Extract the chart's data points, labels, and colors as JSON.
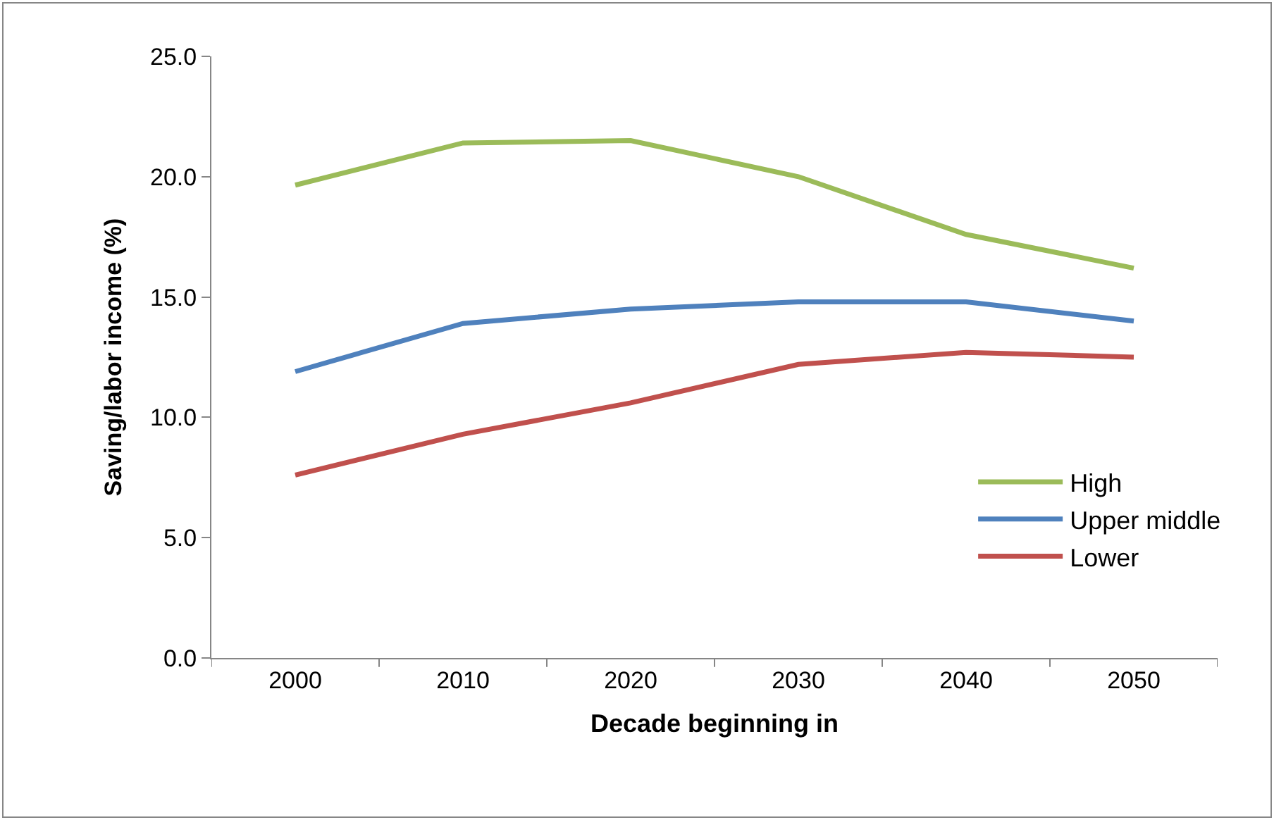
{
  "chart_data": {
    "type": "line",
    "xlabel": "Decade beginning in",
    "ylabel": "Saving/labor income (%)",
    "categories": [
      "2000",
      "2010",
      "2020",
      "2030",
      "2040",
      "2050"
    ],
    "series": [
      {
        "name": "High",
        "color": "#9bbb59",
        "values": [
          19.65,
          21.4,
          21.5,
          20.0,
          17.6,
          16.2
        ]
      },
      {
        "name": "Upper middle",
        "color": "#4f81bd",
        "values": [
          11.9,
          13.9,
          14.5,
          14.8,
          14.8,
          14.0
        ]
      },
      {
        "name": "Lower",
        "color": "#c0504d",
        "values": [
          7.6,
          9.3,
          10.6,
          12.2,
          12.7,
          12.5
        ]
      }
    ],
    "ylim": [
      0,
      25
    ],
    "yticks": [
      {
        "value": 0,
        "label": "0.0"
      },
      {
        "value": 5,
        "label": "5.0"
      },
      {
        "value": 10,
        "label": "10.0"
      },
      {
        "value": 15,
        "label": "15.0"
      },
      {
        "value": 20,
        "label": "20.0"
      },
      {
        "value": 25,
        "label": "25.0"
      }
    ],
    "legend": "right",
    "marker": "none",
    "line_style": "solid"
  }
}
